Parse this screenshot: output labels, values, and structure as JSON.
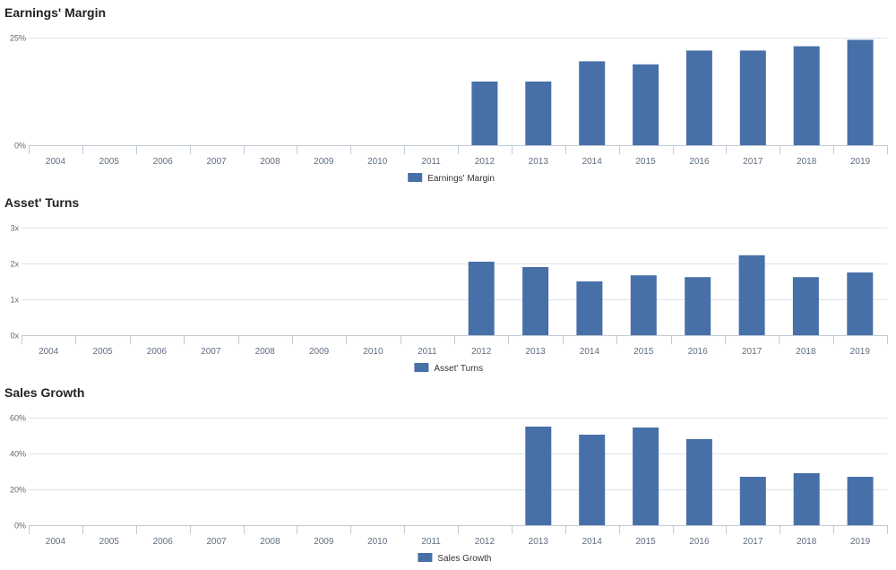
{
  "colors": {
    "bar": "#4870a8",
    "grid": "#dde3ea",
    "axis": "#c2cad5"
  },
  "chart_data": [
    {
      "type": "bar",
      "title": "Earnings' Margin",
      "categories": [
        "2004",
        "2005",
        "2006",
        "2007",
        "2008",
        "2009",
        "2010",
        "2011",
        "2012",
        "2013",
        "2014",
        "2015",
        "2016",
        "2017",
        "2018",
        "2019"
      ],
      "series": [
        {
          "name": "Earnings' Margin",
          "values": [
            0,
            0,
            0,
            0,
            0,
            0,
            0,
            0,
            14.8,
            14.8,
            19.5,
            18.8,
            22.0,
            22.0,
            23.0,
            24.5
          ]
        }
      ],
      "ylim": [
        0,
        25
      ],
      "yticks": [
        {
          "value": 0,
          "label": "0%"
        },
        {
          "value": 25,
          "label": "25%"
        }
      ],
      "grid": true,
      "legend": "bottom-center"
    },
    {
      "type": "bar",
      "title": "Asset' Turns",
      "categories": [
        "2004",
        "2005",
        "2006",
        "2007",
        "2008",
        "2009",
        "2010",
        "2011",
        "2012",
        "2013",
        "2014",
        "2015",
        "2016",
        "2017",
        "2018",
        "2019"
      ],
      "series": [
        {
          "name": "Asset' Turns",
          "values": [
            0,
            0,
            0,
            0,
            0,
            0,
            0,
            0,
            2.05,
            1.9,
            1.5,
            1.67,
            1.62,
            2.23,
            1.62,
            1.75
          ]
        }
      ],
      "ylim": [
        0,
        3
      ],
      "yticks": [
        {
          "value": 0,
          "label": "0x"
        },
        {
          "value": 1,
          "label": "1x"
        },
        {
          "value": 2,
          "label": "2x"
        },
        {
          "value": 3,
          "label": "3x"
        }
      ],
      "grid": true,
      "legend": "bottom-center"
    },
    {
      "type": "bar",
      "title": "Sales Growth",
      "categories": [
        "2004",
        "2005",
        "2006",
        "2007",
        "2008",
        "2009",
        "2010",
        "2011",
        "2012",
        "2013",
        "2014",
        "2015",
        "2016",
        "2017",
        "2018",
        "2019"
      ],
      "series": [
        {
          "name": "Sales Growth",
          "values": [
            0,
            0,
            0,
            0,
            0,
            0,
            0,
            0,
            0,
            55,
            50.5,
            54.5,
            48,
            27,
            29,
            27
          ]
        }
      ],
      "ylim": [
        0,
        60
      ],
      "yticks": [
        {
          "value": 0,
          "label": "0%"
        },
        {
          "value": 20,
          "label": "20%"
        },
        {
          "value": 40,
          "label": "40%"
        },
        {
          "value": 60,
          "label": "60%"
        }
      ],
      "grid": true,
      "legend": "bottom-center"
    }
  ]
}
